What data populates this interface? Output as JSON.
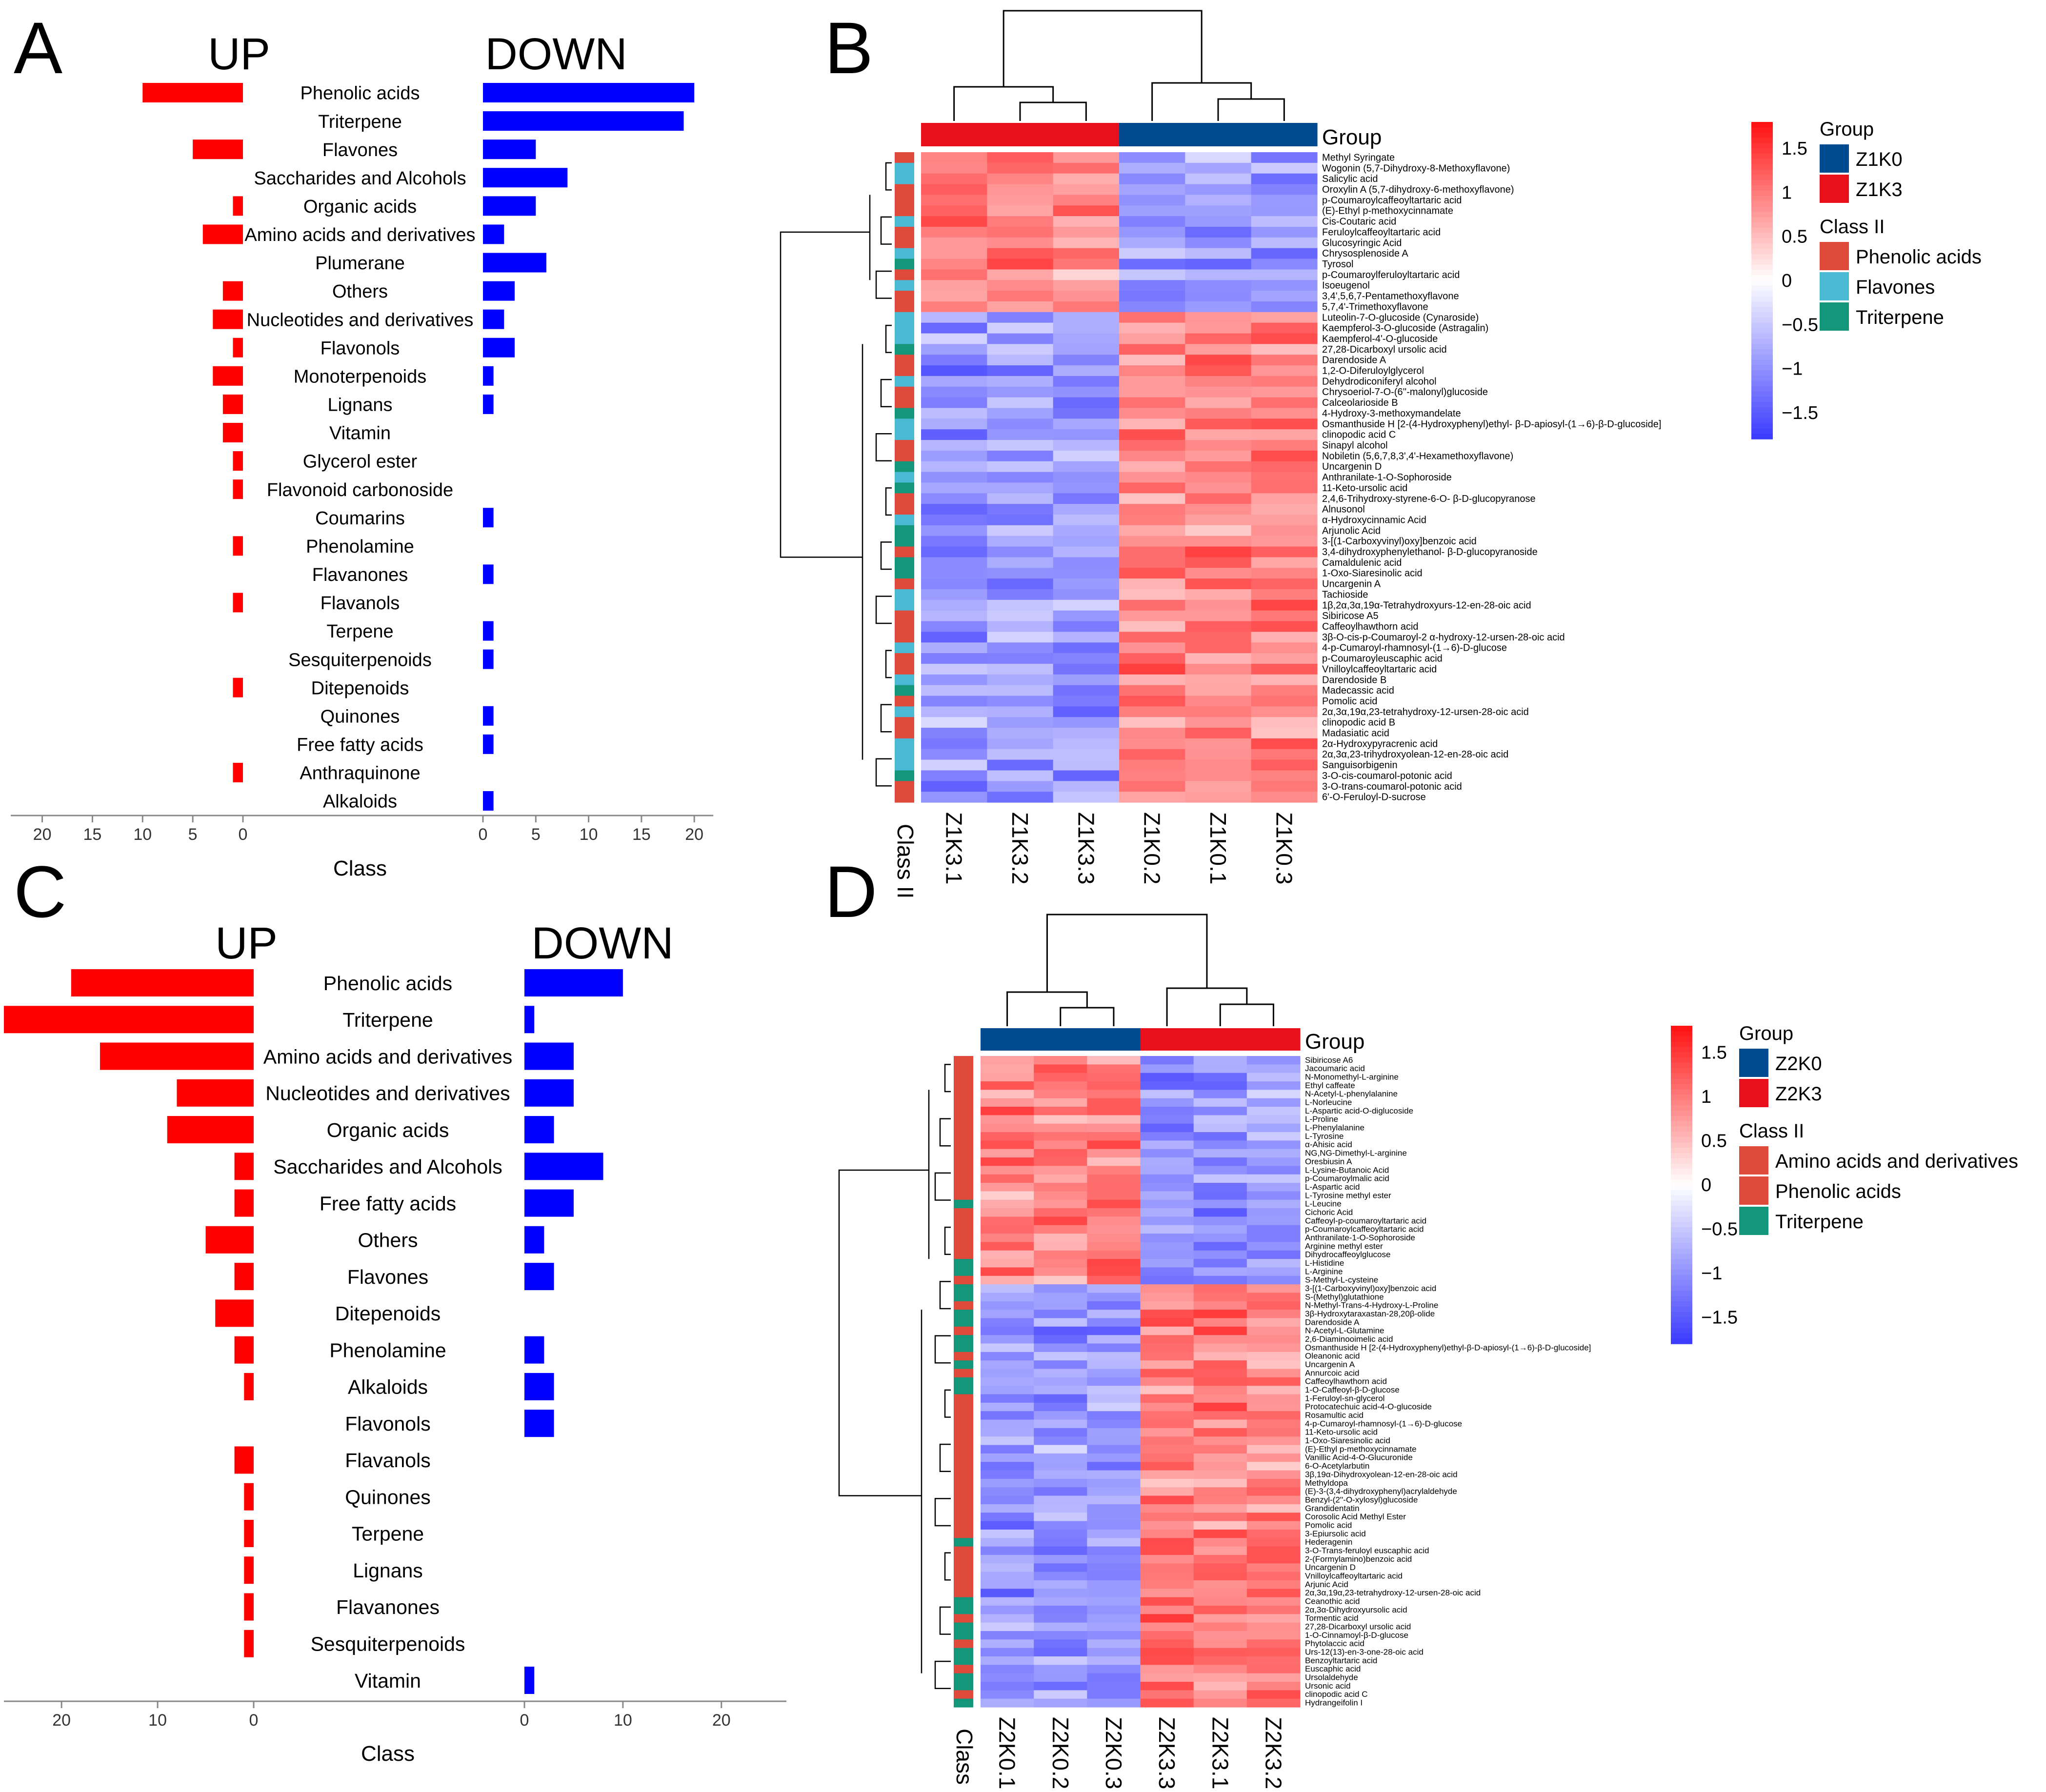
{
  "colors": {
    "up": "#ff0000",
    "down": "#0000ff",
    "z1k0": "#004a8f",
    "z1k3": "#e8101a",
    "class_phenolic": "#e04a3a",
    "class_flavones": "#4bb8d4",
    "class_triterpene": "#14967a",
    "class_amino": "#e04a3a",
    "heat_high": "#ff1010",
    "heat_mid": "#ffffff",
    "heat_low": "#3a3aff"
  },
  "chart_data": [
    {
      "panel": "A",
      "type": "bar",
      "label_up": "UP",
      "label_down": "DOWN",
      "xlabel": "Class",
      "categories": [
        "Phenolic acids",
        "Triterpene",
        "Flavones",
        "Saccharides and  Alcohols",
        "Organic acids",
        "Amino acids and derivatives",
        "Plumerane",
        "Others",
        "Nucleotides and derivatives",
        "Flavonols",
        "Monoterpenoids",
        "Lignans",
        "Vitamin",
        "Glycerol ester",
        "Flavonoid carbonoside",
        "Coumarins",
        "Phenolamine",
        "Flavanones",
        "Flavanols",
        "Terpene",
        "Sesquiterpenoids",
        "Ditepenoids",
        "Quinones",
        "Free fatty acids",
        "Anthraquinone",
        "Alkaloids"
      ],
      "series": [
        {
          "name": "UP",
          "values": [
            10,
            0,
            5,
            0,
            1,
            4,
            0,
            2,
            3,
            1,
            3,
            2,
            2,
            1,
            1,
            0,
            1,
            0,
            1,
            0,
            0,
            1,
            0,
            0,
            1,
            0
          ]
        },
        {
          "name": "DOWN",
          "values": [
            20,
            19,
            5,
            8,
            5,
            2,
            6,
            3,
            2,
            3,
            1,
            1,
            0,
            0,
            0,
            1,
            0,
            1,
            0,
            1,
            1,
            0,
            1,
            1,
            0,
            1
          ]
        }
      ],
      "up_ticks": [
        "20",
        "15",
        "10",
        "5",
        "0"
      ],
      "down_ticks": [
        "0",
        "5",
        "10",
        "15",
        "20"
      ],
      "up_xlim": [
        0,
        21
      ],
      "down_xlim": [
        0,
        20.5
      ]
    },
    {
      "panel": "C",
      "type": "bar",
      "label_up": "UP",
      "label_down": "DOWN",
      "xlabel": "Class",
      "categories": [
        "Phenolic acids",
        "Triterpene",
        "Amino acids and derivatives",
        "Nucleotides and derivatives",
        "Organic acids",
        "Saccharides and Alcohols",
        "Free fatty acids",
        "Others",
        "Flavones",
        "Ditepenoids",
        "Phenolamine",
        "Alkaloids",
        "Flavonols",
        "Flavanols",
        "Quinones",
        "Terpene",
        "Lignans",
        "Flavanones",
        "Sesquiterpenoids",
        "Vitamin"
      ],
      "series": [
        {
          "name": "UP",
          "values": [
            19,
            26,
            16,
            8,
            9,
            2,
            2,
            5,
            2,
            4,
            2,
            1,
            0,
            2,
            1,
            1,
            1,
            1,
            1,
            0
          ]
        },
        {
          "name": "DOWN",
          "values": [
            10,
            1,
            5,
            5,
            3,
            8,
            5,
            2,
            3,
            0,
            2,
            3,
            3,
            0,
            0,
            0,
            0,
            0,
            0,
            1
          ]
        }
      ],
      "up_ticks": [
        "20",
        "10",
        "0"
      ],
      "down_ticks": [
        "0",
        "10",
        "20"
      ],
      "up_xlim": [
        0,
        26
      ],
      "down_xlim": [
        0,
        26.5
      ]
    },
    {
      "panel": "B",
      "type": "heatmap",
      "columns": [
        "Z1K3.1",
        "Z1K3.2",
        "Z1K3.3",
        "Z1K0.2",
        "Z1K0.1",
        "Z1K0.3"
      ],
      "column_groups": [
        "Z1K3",
        "Z1K3",
        "Z1K3",
        "Z1K0",
        "Z1K0",
        "Z1K0"
      ],
      "group_label": "Group",
      "class_label": "Class II",
      "legend_group_title": "Group",
      "legend_groups": [
        "Z1K0",
        "Z1K3"
      ],
      "legend_class_title": "Class II",
      "legend_classes": [
        "Phenolic acids",
        "Flavones",
        "Triterpene"
      ],
      "colorbar_ticks": [
        "1.5",
        "1",
        "0.5",
        "0",
        "−0.5",
        "−1",
        "−1.5"
      ],
      "colorbar_range": [
        -1.8,
        1.8
      ],
      "up_rows": 15,
      "rows": [
        "Methyl Syringate",
        "Wogonin (5,7-Dihydroxy-8-Methoxyflavone)",
        "Salicylic acid",
        "Oroxylin A (5,7-dihydroxy-6-methoxyflavone)",
        "p-Coumaroylcaffeoyltartaric acid",
        "(E)-Ethyl p-methoxycinnamate",
        "Cis-Coutaric acid",
        "Feruloylcaffeoyltartaric acid",
        "Glucosyringic Acid",
        "Chrysosplenoside A",
        "Tyrosol",
        "p-Coumaroylferuloyltartaric acid",
        "Isoeugenol",
        "3,4',5,6,7-Pentamethoxyflavone",
        "5,7,4'-Trimethoxyflavone",
        "Luteolin-7-O-glucoside (Cynaroside)",
        "Kaempferol-3-O-glucoside (Astragalin)",
        "Kaempferol-4'-O-glucoside",
        "27,28-Dicarboxyl ursolic acid",
        "Darendoside A",
        "1,2-O-Diferuloylglycerol",
        "Dehydrodiconiferyl alcohol",
        "Chrysoeriol-7-O-(6''-malonyl)glucoside",
        "Calceolarioside B",
        "4-Hydroxy-3-methoxymandelate",
        "Osmanthuside H [2-(4-Hydroxyphenyl)ethyl- β-D-apiosyl-(1→6)-β-D-glucoside]",
        "clinopodic acid C",
        "Sinapyl alcohol",
        "Nobiletin (5,6,7,8,3',4'-Hexamethoxyflavone)",
        "Uncargenin D",
        "Anthranilate-1-O-Sophoroside",
        "11-Keto-ursolic acid",
        "2,4,6-Trihydroxy-styrene-6-O- β-D-glucopyranose",
        "Alnusonol",
        "α-Hydroxycinnamic Acid",
        "Arjunolic Acid",
        "3-[(1-Carboxyvinyl)oxy]benzoic acid",
        "3,4-dihydroxyphenylethanol- β-D-glucopyranoside",
        "Camaldulenic acid",
        "1-Oxo-Siaresinolic acid",
        "Uncargenin A",
        "Tachioside",
        "1β,2α,3α,19α-Tetrahydroxyurs-12-en-28-oic acid",
        "Sibiricose A5",
        "Caffeoylhawthorn acid",
        "3β-O-cis-p-Coumaroyl-2 α-hydroxy-12-ursen-28-oic acid",
        "4-p-Cumaroyl-rhamnosyl-(1→6)-D-glucose",
        "p-Coumaroyleuscaphic acid",
        "Vnilloylcaffeoyltartaric acid",
        "Darendoside B",
        "Madecassic acid",
        "Pomolic acid",
        "2α,3α,19α,23-tetrahydroxy-12-ursen-28-oic acid",
        "clinopodic acid B",
        "Madasiatic acid",
        "2α-Hydroxypyracrenic acid",
        "2α,3α,23-trihydroxyolean-12-en-28-oic acid",
        "Sanguisorbigenin",
        "3-O-cis-coumarol-potonic acid",
        "3-O-trans-coumarol-potonic acid",
        "6'-O-Feruloyl-D-sucrose"
      ]
    },
    {
      "panel": "D",
      "type": "heatmap",
      "columns": [
        "Z2K0.1",
        "Z2K0.2",
        "Z2K0.3",
        "Z2K3.3",
        "Z2K3.1",
        "Z2K3.2"
      ],
      "column_groups": [
        "Z2K0",
        "Z2K0",
        "Z2K0",
        "Z2K3",
        "Z2K3",
        "Z2K3"
      ],
      "group_label": "Group",
      "class_label": "Class II",
      "legend_group_title": "Group",
      "legend_groups": [
        "Z2K0",
        "Z2K3"
      ],
      "legend_class_title": "Class II",
      "legend_classes": [
        "Amino acids and derivatives",
        "Phenolic acids",
        "Triterpene"
      ],
      "colorbar_ticks": [
        "1.5",
        "1",
        "0.5",
        "0",
        "−0.5",
        "−1",
        "−1.5"
      ],
      "colorbar_range": [
        -1.8,
        1.8
      ],
      "up_rows": 27,
      "rows": [
        "Sibiricose A6",
        "Jacoumaric acid",
        "N-Monomethyl-L-arginine",
        "Ethyl caffeate",
        "N-Acetyl-L-phenylalanine",
        "L-Norleucine",
        "L-Aspartic acid-O-diglucoside",
        "L-Proline",
        "L-Phenylalanine",
        "L-Tyrosine",
        "α-Ahisic acid",
        "NG,NG-Dimethyl-L-arginine",
        "Oresbiusin A",
        "L-Lysine-Butanoic Acid",
        "p-Coumaroylmalic acid",
        "L-Aspartic acid",
        "L-Tyrosine methyl ester",
        "L-Leucine",
        "Cichoric Acid",
        "Caffeoyl-p-coumaroyltartaric acid",
        "p-Coumaroylcaffeoyltartaric acid",
        "Anthranilate-1-O-Sophoroside",
        "Arginine methyl ester",
        "Dihydrocaffeoylglucose",
        "L-Histidine",
        "L-Arginine",
        "S-Methyl-L-cysteine",
        "3-[(1-Carboxyvinyl)oxy]benzoic acid",
        "S-(Methyl)glutathione",
        "N-Methyl-Trans-4-Hydroxy-L-Proline",
        "3β-Hydroxytaraxastan-28,20β-olide",
        "Darendoside A",
        "N-Acetyl-L-Glutamine",
        "2,6-Diaminooimelic acid",
        "Osmanthuside H [2-(4-Hydroxyphenyl)ethyl-β-D-apiosyl-(1→6)-β-D-glucoside]",
        "Oleanonic acid",
        "Uncargenin A",
        "Annurcoic acid",
        "Caffeoylhawthorn acid",
        "1-O-Caffeoyl-β-D-glucose",
        "1-Feruloyl-sn-glycerol",
        "Protocatechuic acid-4-O-glucoside",
        "Rosamultic acid",
        "4-p-Cumaroyl-rhamnosyl-(1→6)-D-glucose",
        "11-Keto-ursolic acid",
        "1-Oxo-Siaresinolic acid",
        "(E)-Ethyl p-methoxycinnamate",
        "Vanillic Acid-4-O-Glucuronide",
        "6-O-Acetylarbutin",
        "3β,19α-Dihydroxyolean-12-en-28-oic acid",
        "Methyldopa",
        "(E)-3-(3,4-dihydroxyphenyl)acrylaldehyde",
        "Benzyl-(2''-O-xylosyl)glucoside",
        "Grandidentatin",
        "Corosolic Acid Methyl Ester",
        "Pomolic acid",
        "3-Epiursolic acid",
        "Hederagenin",
        "3-O-Trans-feruloyl euscaphic acid",
        "2-(Formylamino)benzoic acid",
        "Uncargenin D",
        "Vnilloylcaffeoyltartaric acid",
        "Arjunic Acid",
        "2α,3α,19α,23-tetrahydroxy-12-ursen-28-oic acid",
        "Ceanothic acid",
        "2α,3α-Dihydroxyursolic acid",
        "Tormentic acid",
        "27,28-Dicarboxyl ursolic acid",
        "1-O-Cinnamoyl-β-D-glucose",
        "Phytolaccic acid",
        "Urs-12(13)-en-3-one-28-oic acid",
        "Benzoyltartaric acid",
        "Euscaphic acid",
        "Ursolaldehyde",
        "Ursonic acid",
        "clinopodic acid C",
        "Hydrangeifolin I"
      ]
    }
  ]
}
